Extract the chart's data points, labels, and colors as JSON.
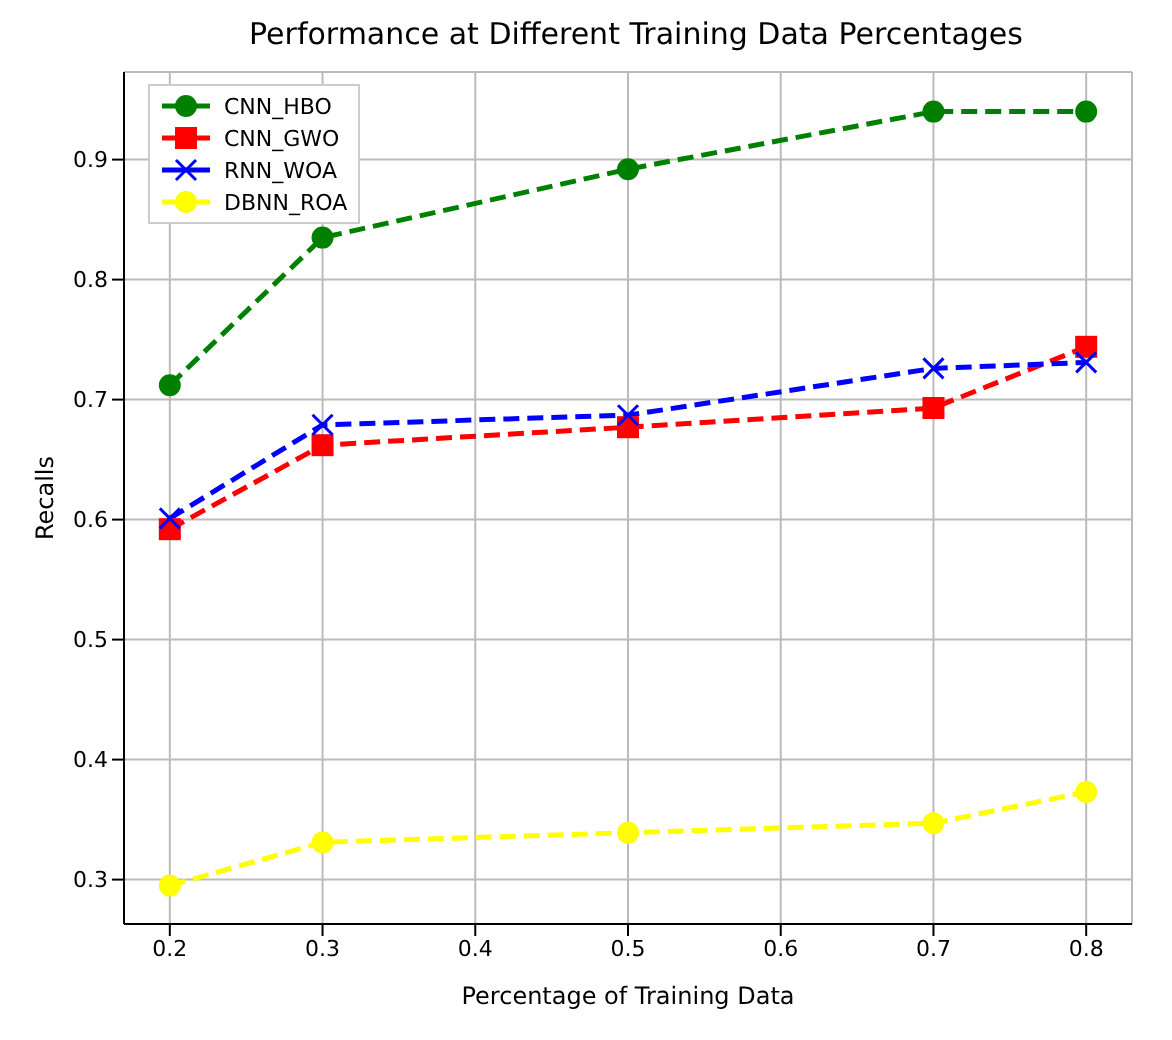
{
  "chart_data": {
    "type": "line",
    "title": "Performance at Different Training Data Percentages",
    "xlabel": "Percentage of Training Data",
    "ylabel": "Recalls",
    "x": [
      0.2,
      0.3,
      0.5,
      0.7,
      0.8
    ],
    "series": [
      {
        "name": "CNN_HBO",
        "color": "#008000",
        "marker": "circle",
        "values": [
          0.712,
          0.835,
          0.892,
          0.94,
          0.94
        ]
      },
      {
        "name": "CNN_GWO",
        "color": "#ff0000",
        "marker": "square",
        "values": [
          0.592,
          0.662,
          0.677,
          0.693,
          0.744
        ]
      },
      {
        "name": "RNN_WOA",
        "color": "#0000ff",
        "marker": "cross",
        "values": [
          0.601,
          0.679,
          0.687,
          0.726,
          0.731
        ]
      },
      {
        "name": "DBNN_ROA",
        "color": "#ffff00",
        "marker": "circle",
        "values": [
          0.295,
          0.331,
          0.339,
          0.347,
          0.373
        ]
      }
    ],
    "xlim": [
      0.17,
      0.83
    ],
    "xticks": [
      0.2,
      0.3,
      0.4,
      0.5,
      0.6,
      0.7,
      0.8
    ],
    "ylim": [
      0.263,
      0.973
    ],
    "yticks": [
      0.3,
      0.4,
      0.5,
      0.6,
      0.7,
      0.8,
      0.9
    ],
    "grid": true,
    "legend": "top left",
    "line_style": "dashed"
  }
}
